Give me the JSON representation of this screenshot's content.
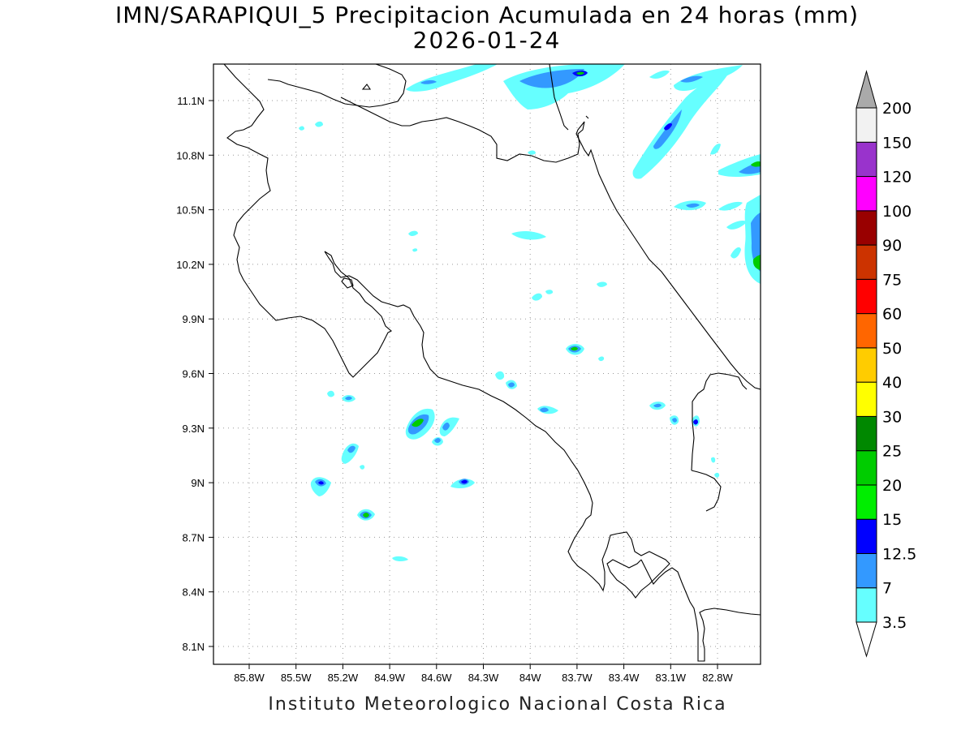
{
  "title": "IMN/SARAPIQUI_5 Precipitacion Acumulada en 24 horas (mm)",
  "date": "2026-01-24",
  "footer": "Instituto Meteorologico Nacional Costa Rica",
  "map": {
    "lon_range": [
      -86.0,
      -83.0
    ],
    "lat_range": [
      8.0,
      11.3
    ],
    "lon_ticks": [
      "85.8W",
      "85.5W",
      "85.2W",
      "84.9W",
      "84.6W",
      "84.3W",
      "84W",
      "83.7W",
      "83.4W",
      "83.1W",
      "82.8W"
    ],
    "lat_ticks": [
      "11.1N",
      "10.8N",
      "10.5N",
      "10.2N",
      "9.9N",
      "9.6N",
      "9.3N",
      "9N",
      "8.7N",
      "8.4N",
      "8.1N"
    ],
    "grid": "dotted"
  },
  "colorbar": {
    "levels": [
      "3.5",
      "7",
      "12.5",
      "15",
      "20",
      "25",
      "30",
      "40",
      "50",
      "60",
      "75",
      "90",
      "100",
      "120",
      "150",
      "200"
    ],
    "colors": [
      "#66ffff",
      "#3399ff",
      "#0000ff",
      "#00ee00",
      "#00cc00",
      "#008800",
      "#ffff00",
      "#ffcc00",
      "#ff6600",
      "#ff0000",
      "#cc3300",
      "#990000",
      "#ff00ff",
      "#9933cc",
      "#f2f2f2",
      "#aaaaaa"
    ]
  }
}
